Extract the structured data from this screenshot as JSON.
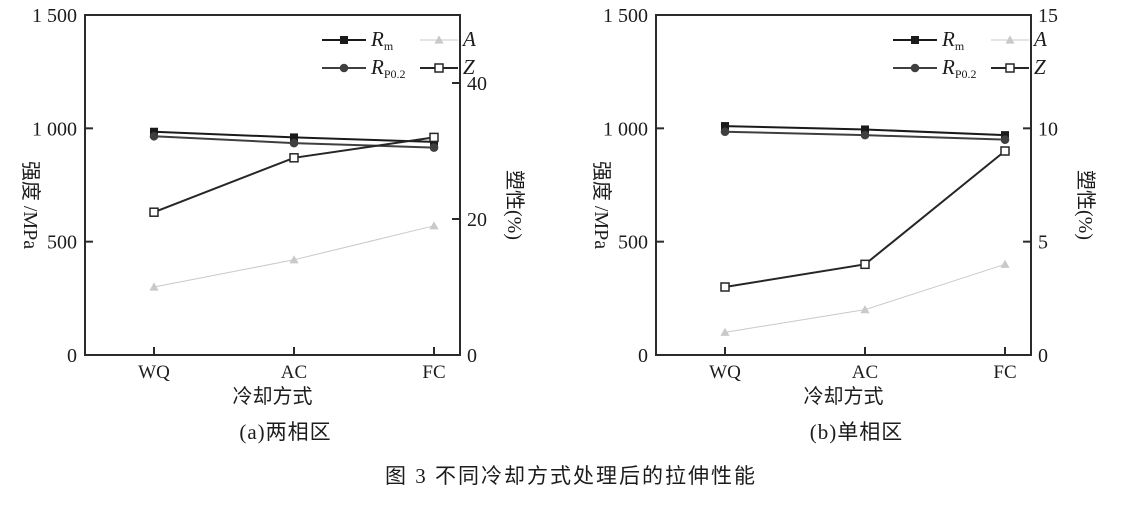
{
  "figure_caption": "图 3 不同冷却方式处理后的拉伸性能",
  "colors": {
    "axis": "#2b2b2b",
    "background": "#ffffff",
    "rm": "#1a1a1a",
    "rp02": "#3f3f3f",
    "z": "#262626",
    "a": "#c9c9c9"
  },
  "chart_data": [
    {
      "type": "line",
      "panel_label": "(a)两相区",
      "xlabel": "冷却方式",
      "ylabel_left": "强度 /MPa",
      "ylabel_right": "塑性(%)",
      "categories": [
        "WQ",
        "AC",
        "FC"
      ],
      "left_axis": {
        "range": [
          0,
          1500
        ],
        "tick_values": [
          0,
          500,
          1000,
          1500
        ],
        "ticks": [
          "0",
          "500",
          "1 000",
          "1 500"
        ]
      },
      "right_axis": {
        "range": [
          0,
          50
        ],
        "tick_values": [
          0,
          20,
          40
        ],
        "ticks": [
          "0",
          "20",
          "40"
        ]
      },
      "grid": false,
      "legend_position": "top-right",
      "series": [
        {
          "name": "Rm",
          "label_main": "R",
          "label_sub": "m",
          "axis": "left",
          "marker": "square-filled",
          "color": "#1a1a1a",
          "values": [
            985,
            960,
            940
          ]
        },
        {
          "name": "RP0.2",
          "label_main": "R",
          "label_sub": "P0.2",
          "axis": "left",
          "marker": "circle-filled",
          "color": "#3f3f3f",
          "values": [
            965,
            935,
            915
          ]
        },
        {
          "name": "A",
          "label_main": "A",
          "label_sub": "",
          "axis": "right",
          "marker": "triangle-filled",
          "color": "#c9c9c9",
          "values": [
            10,
            14,
            19
          ]
        },
        {
          "name": "Z",
          "label_main": "Z",
          "label_sub": "",
          "axis": "right",
          "marker": "square-open",
          "color": "#262626",
          "values": [
            21,
            29,
            32
          ]
        }
      ]
    },
    {
      "type": "line",
      "panel_label": "(b)单相区",
      "xlabel": "冷却方式",
      "ylabel_left": "强度 /MPa",
      "ylabel_right": "塑性(%)",
      "categories": [
        "WQ",
        "AC",
        "FC"
      ],
      "left_axis": {
        "range": [
          0,
          1500
        ],
        "tick_values": [
          0,
          500,
          1000,
          1500
        ],
        "ticks": [
          "0",
          "500",
          "1 000",
          "1 500"
        ]
      },
      "right_axis": {
        "range": [
          0,
          15
        ],
        "tick_values": [
          0,
          5,
          10,
          15
        ],
        "ticks": [
          "0",
          "5",
          "10",
          "15"
        ]
      },
      "grid": false,
      "legend_position": "top-right",
      "series": [
        {
          "name": "Rm",
          "label_main": "R",
          "label_sub": "m",
          "axis": "left",
          "marker": "square-filled",
          "color": "#1a1a1a",
          "values": [
            1010,
            995,
            970
          ]
        },
        {
          "name": "RP0.2",
          "label_main": "R",
          "label_sub": "P0.2",
          "axis": "left",
          "marker": "circle-filled",
          "color": "#3f3f3f",
          "values": [
            985,
            970,
            950
          ]
        },
        {
          "name": "A",
          "label_main": "A",
          "label_sub": "",
          "axis": "right",
          "marker": "triangle-filled",
          "color": "#c9c9c9",
          "values": [
            1,
            2,
            4
          ]
        },
        {
          "name": "Z",
          "label_main": "Z",
          "label_sub": "",
          "axis": "right",
          "marker": "square-open",
          "color": "#262626",
          "values": [
            3,
            4,
            9
          ]
        }
      ]
    }
  ]
}
